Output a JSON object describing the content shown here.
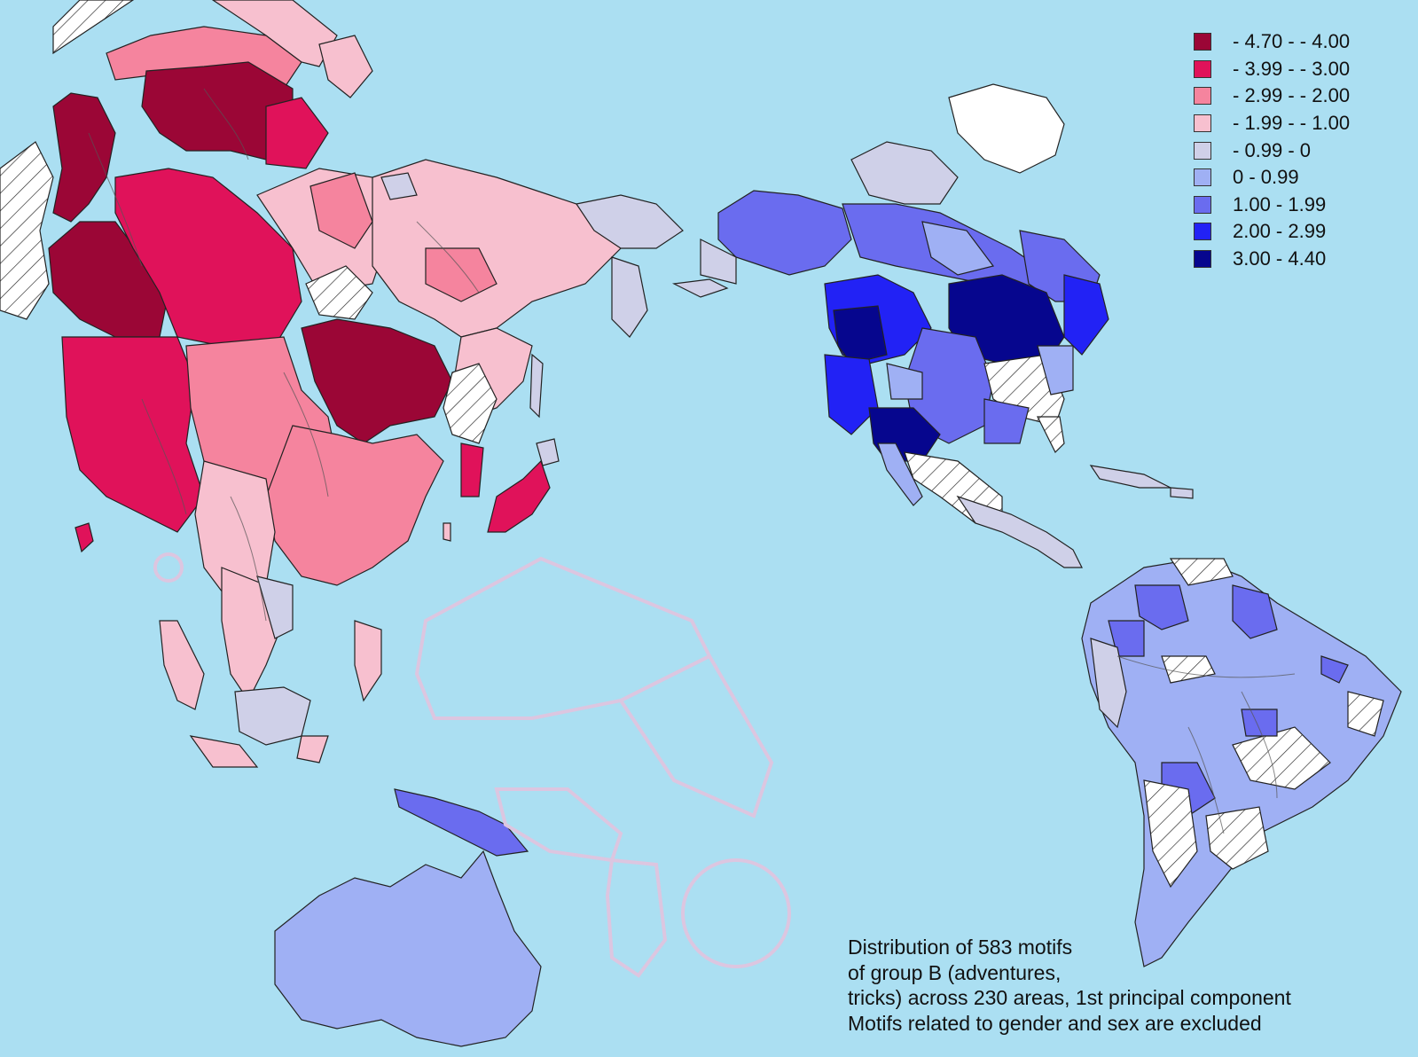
{
  "legend": {
    "items": [
      {
        "label": "- 4.70 - - 4.00",
        "color": "#9b0636"
      },
      {
        "label": "- 3.99 - - 3.00",
        "color": "#e0125a"
      },
      {
        "label": "- 2.99 - - 2.00",
        "color": "#f5849e"
      },
      {
        "label": "- 1.99 - - 1.00",
        "color": "#f7c0cf"
      },
      {
        "label": "- 0.99 - 0",
        "color": "#cfd0e8"
      },
      {
        "label": "0 - 0.99",
        "color": "#9fb0f4"
      },
      {
        "label": "1.00 - 1.99",
        "color": "#6a6cef"
      },
      {
        "label": "2.00 - 2.99",
        "color": "#2222f5"
      },
      {
        "label": "3.00 - 4.40",
        "color": "#06068e"
      }
    ]
  },
  "caption": {
    "lines": [
      "Distribution of 583 motifs",
      "of group B (adventures,",
      "tricks) across 230 areas, 1st principal component",
      "Motifs related to gender and sex are excluded"
    ]
  },
  "colors": {
    "ocean": "#abdff2",
    "no_data": "#ffffff",
    "oceania_outline": "#dcc6e0"
  }
}
